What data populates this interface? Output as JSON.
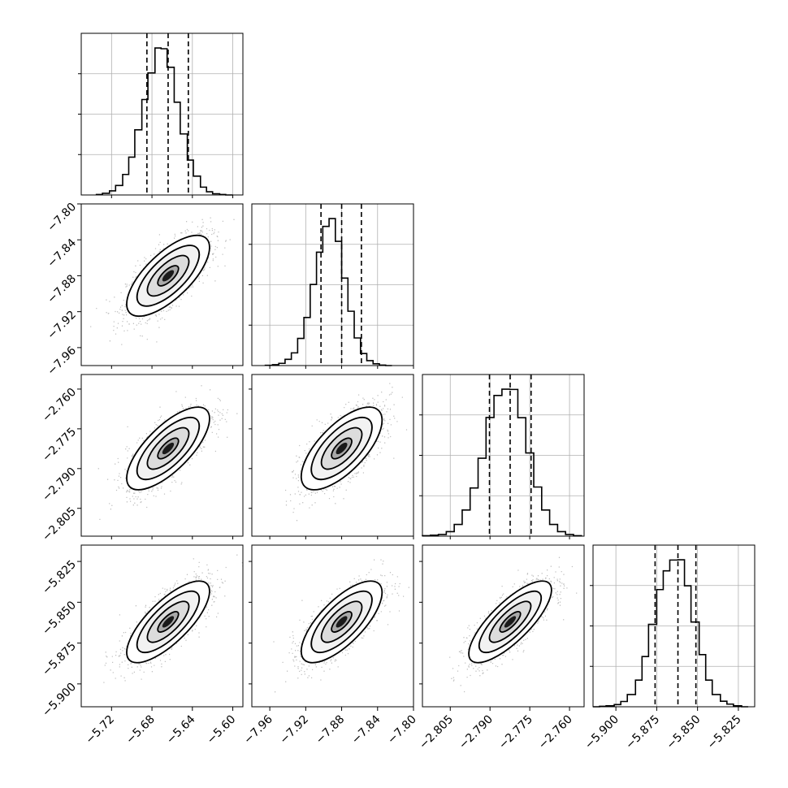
{
  "chart_data": {
    "type": "corner",
    "title": "",
    "parameters": [
      {
        "name": "",
        "range": [
          -5.75,
          -5.59
        ],
        "ticks": [
          -5.72,
          -5.68,
          -5.64,
          -5.6
        ],
        "tick_labels": [
          "−5.72",
          "−5.68",
          "−5.64",
          "−5.60"
        ],
        "quantiles": [
          -5.685,
          -5.664,
          -5.644
        ],
        "hist_edges": [
          -5.735,
          -5.729,
          -5.722,
          -5.716,
          -5.709,
          -5.703,
          -5.697,
          -5.69,
          -5.684,
          -5.677,
          -5.671,
          -5.665,
          -5.658,
          -5.652,
          -5.645,
          -5.639,
          -5.632,
          -5.626,
          -5.62,
          -5.613,
          -5.607,
          -5.6
        ],
        "hist_counts": [
          2,
          7,
          17,
          39,
          84,
          155,
          267,
          391,
          500,
          602,
          599,
          523,
          380,
          250,
          143,
          77,
          32,
          13,
          5,
          2,
          0
        ]
      },
      {
        "name": "",
        "range": [
          -7.98,
          -7.8
        ],
        "ticks": [
          -7.96,
          -7.92,
          -7.88,
          -7.84,
          -7.8
        ],
        "tick_labels": [
          "−7.96",
          "−7.92",
          "−7.88",
          "−7.84",
          "−7.80"
        ],
        "quantiles": [
          -7.903,
          -7.88,
          -7.858
        ],
        "hist_edges": [
          -7.965,
          -7.957,
          -7.95,
          -7.943,
          -7.936,
          -7.929,
          -7.922,
          -7.915,
          -7.908,
          -7.901,
          -7.894,
          -7.887,
          -7.88,
          -7.873,
          -7.866,
          -7.859,
          -7.852,
          -7.845,
          -7.838,
          -7.831,
          -7.824
        ],
        "hist_counts": [
          1,
          4,
          10,
          28,
          57,
          122,
          216,
          364,
          509,
          625,
          660,
          558,
          393,
          244,
          124,
          54,
          22,
          8,
          2,
          0
        ]
      },
      {
        "name": "",
        "range": [
          -2.8155,
          -2.7545
        ],
        "ticks": [
          -2.805,
          -2.79,
          -2.775,
          -2.76
        ],
        "tick_labels": [
          "−2.805",
          "−2.790",
          "−2.775",
          "−2.760"
        ],
        "quantiles": [
          -2.7902,
          -2.7824,
          -2.7745
        ],
        "hist_edges": [
          -2.8155,
          -2.8125,
          -2.8095,
          -2.8065,
          -2.8035,
          -2.8005,
          -2.7975,
          -2.7945,
          -2.7915,
          -2.7885,
          -2.7855,
          -2.7825,
          -2.7795,
          -2.7765,
          -2.7735,
          -2.7705,
          -2.7675,
          -2.7645,
          -2.7615,
          -2.7585,
          -2.7555
        ],
        "hist_counts": [
          2,
          4,
          7,
          19,
          49,
          109,
          201,
          325,
          495,
          587,
          613,
          612,
          494,
          347,
          205,
          109,
          49,
          19,
          7,
          2
        ]
      },
      {
        "name": "",
        "range": [
          -5.914,
          -5.815
        ],
        "ticks": [
          -5.9,
          -5.875,
          -5.85,
          -5.825
        ],
        "tick_labels": [
          "−5.900",
          "−5.875",
          "−5.850",
          "−5.825"
        ],
        "quantiles": [
          -5.876,
          -5.862,
          -5.851
        ],
        "hist_edges": [
          -5.914,
          -5.91,
          -5.906,
          -5.901,
          -5.897,
          -5.893,
          -5.888,
          -5.884,
          -5.88,
          -5.875,
          -5.871,
          -5.867,
          -5.862,
          -5.858,
          -5.854,
          -5.849,
          -5.845,
          -5.841,
          -5.836,
          -5.832,
          -5.828,
          -5.823,
          -5.819
        ],
        "hist_counts": [
          0,
          2,
          4,
          9,
          22,
          51,
          111,
          209,
          343,
          488,
          566,
          611,
          612,
          504,
          353,
          217,
          111,
          51,
          23,
          11,
          4,
          0
        ]
      }
    ],
    "pairs": [
      {
        "x": 0,
        "y": 1,
        "center": [
          -5.664,
          -7.88
        ],
        "sd": [
          0.0205,
          0.0225
        ],
        "corr": 0.7
      },
      {
        "x": 0,
        "y": 2,
        "center": [
          -5.664,
          -2.7824
        ],
        "sd": [
          0.0205,
          0.0078
        ],
        "corr": 0.72
      },
      {
        "x": 1,
        "y": 2,
        "center": [
          -7.88,
          -2.7824
        ],
        "sd": [
          0.0225,
          0.0078
        ],
        "corr": 0.68
      },
      {
        "x": 0,
        "y": 3,
        "center": [
          -5.664,
          -5.862
        ],
        "sd": [
          0.0205,
          0.0125
        ],
        "corr": 0.75
      },
      {
        "x": 1,
        "y": 3,
        "center": [
          -7.88,
          -5.862
        ],
        "sd": [
          0.0225,
          0.0125
        ],
        "corr": 0.72
      },
      {
        "x": 2,
        "y": 3,
        "center": [
          -2.7824,
          -5.862
        ],
        "sd": [
          0.0078,
          0.0125
        ],
        "corr": 0.78
      }
    ],
    "contour_levels_sigma": [
      0.5,
      1.0,
      1.5,
      2.0
    ],
    "grid": true,
    "colors": {
      "line": "#000000",
      "grid": "#b0b0b0",
      "points": "#000000"
    }
  }
}
